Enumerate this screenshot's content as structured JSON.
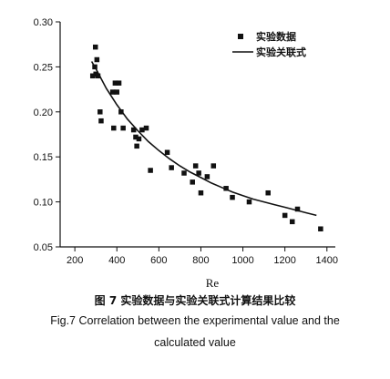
{
  "chart_data": {
    "type": "scatter",
    "xlabel": "Re",
    "ylabel": "",
    "xlim": [
      130,
      1440
    ],
    "ylim": [
      0.05,
      0.3
    ],
    "x_ticks": [
      200,
      400,
      600,
      800,
      1000,
      1200,
      1400
    ],
    "y_ticks": [
      0.05,
      0.1,
      0.15,
      0.2,
      0.25,
      0.3
    ],
    "x_tick_labels": [
      "200",
      "400",
      "600",
      "800",
      "1000",
      "1200",
      "1400"
    ],
    "y_tick_labels": [
      "0.05",
      "0.10",
      "0.15",
      "0.20",
      "0.25",
      "0.30"
    ],
    "grid": false,
    "legend_position": "top-right",
    "series": [
      {
        "name": "实验数据",
        "type": "scatter",
        "marker": "square",
        "points": [
          [
            285,
            0.24
          ],
          [
            295,
            0.25
          ],
          [
            298,
            0.272
          ],
          [
            300,
            0.242
          ],
          [
            305,
            0.258
          ],
          [
            310,
            0.24
          ],
          [
            320,
            0.2
          ],
          [
            325,
            0.19
          ],
          [
            380,
            0.222
          ],
          [
            385,
            0.182
          ],
          [
            392,
            0.232
          ],
          [
            400,
            0.222
          ],
          [
            410,
            0.232
          ],
          [
            420,
            0.2
          ],
          [
            430,
            0.182
          ],
          [
            480,
            0.18
          ],
          [
            490,
            0.172
          ],
          [
            495,
            0.162
          ],
          [
            505,
            0.17
          ],
          [
            520,
            0.18
          ],
          [
            540,
            0.182
          ],
          [
            560,
            0.135
          ],
          [
            640,
            0.155
          ],
          [
            660,
            0.138
          ],
          [
            720,
            0.132
          ],
          [
            760,
            0.122
          ],
          [
            775,
            0.14
          ],
          [
            790,
            0.132
          ],
          [
            800,
            0.11
          ],
          [
            830,
            0.128
          ],
          [
            860,
            0.14
          ],
          [
            920,
            0.115
          ],
          [
            950,
            0.105
          ],
          [
            1030,
            0.1
          ],
          [
            1120,
            0.11
          ],
          [
            1200,
            0.085
          ],
          [
            1235,
            0.078
          ],
          [
            1260,
            0.092
          ],
          [
            1370,
            0.07
          ]
        ]
      },
      {
        "name": "实验关联式",
        "type": "line",
        "points": [
          [
            280,
            0.256
          ],
          [
            300,
            0.248
          ],
          [
            350,
            0.226
          ],
          [
            400,
            0.208
          ],
          [
            450,
            0.192
          ],
          [
            500,
            0.179
          ],
          [
            550,
            0.167
          ],
          [
            600,
            0.157
          ],
          [
            650,
            0.148
          ],
          [
            700,
            0.14
          ],
          [
            750,
            0.133
          ],
          [
            800,
            0.127
          ],
          [
            850,
            0.121
          ],
          [
            900,
            0.116
          ],
          [
            950,
            0.111
          ],
          [
            1000,
            0.107
          ],
          [
            1050,
            0.103
          ],
          [
            1100,
            0.1
          ],
          [
            1150,
            0.097
          ],
          [
            1200,
            0.094
          ],
          [
            1250,
            0.091
          ],
          [
            1300,
            0.088
          ],
          [
            1350,
            0.085
          ]
        ]
      }
    ]
  },
  "caption": {
    "chinese": "图 7  实验数据与实验关联式计算结果比较",
    "english_line1": "Fig.7 Correlation between the experimental value and the",
    "english_line2": "calculated value"
  }
}
